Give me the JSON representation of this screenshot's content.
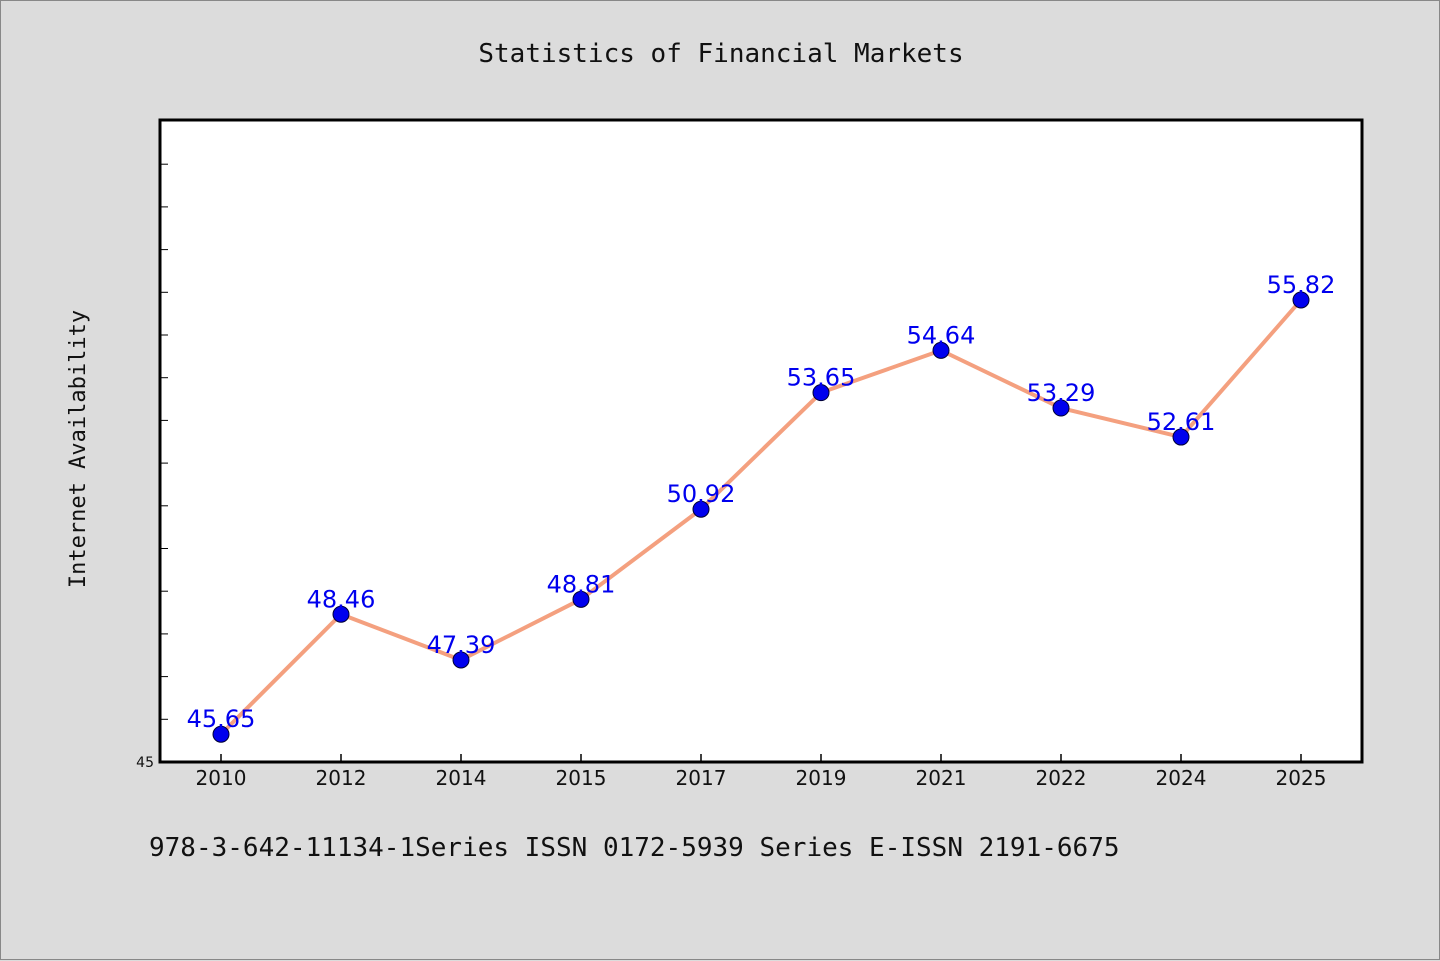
{
  "footer_note": "978-3-642-11134-1Series ISSN 0172-5939 Series E-ISSN 2191-6675",
  "chart_data": {
    "type": "line",
    "title": "Statistics of Financial Markets",
    "xlabel": "",
    "ylabel": "Internet Availability",
    "categories": [
      "2010",
      "2012",
      "2014",
      "2015",
      "2017",
      "2019",
      "2021",
      "2022",
      "2024",
      "2025"
    ],
    "series": [
      {
        "values": [
          45.65,
          48.46,
          47.39,
          48.81,
          50.92,
          53.65,
          54.64,
          53.29,
          52.61,
          55.82
        ],
        "data_labels": [
          "45.65",
          "48.46",
          "47.39",
          "48.81",
          "50.92",
          "53.65",
          "54.64",
          "53.29",
          "52.61",
          "55.82"
        ]
      }
    ],
    "ylim": [
      45,
      60
    ],
    "y_tick_labels": [
      "45"
    ],
    "y_minor_step": 1,
    "grid": false,
    "colors": {
      "line": "#f4a07f",
      "marker": "#0000ee",
      "label": "#0000ee",
      "plot_background": "#ffffff",
      "figure_background": "#dcdcdc"
    }
  }
}
